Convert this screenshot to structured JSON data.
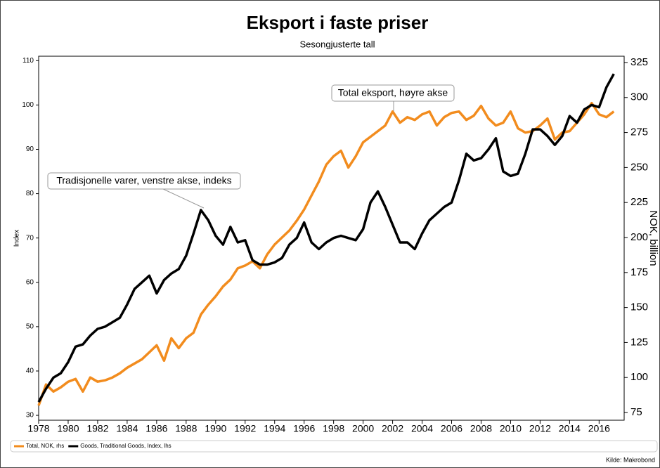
{
  "chart_data": {
    "type": "line",
    "title": "Eksport i faste priser",
    "subtitle": "Sesongjusterte tall",
    "y_label": "Index",
    "y2_label": "NOK, billion",
    "source": "Kilde: Makrobond",
    "annotations": [
      {
        "text": "Total eksport, høyre akse"
      },
      {
        "text": "Tradisjonelle varer, venstre akse, indeks"
      }
    ],
    "x": [
      1978,
      1978.5,
      1979,
      1979.5,
      1980,
      1980.5,
      1981,
      1981.5,
      1982,
      1982.5,
      1983,
      1983.5,
      1984,
      1984.5,
      1985,
      1985.5,
      1986,
      1986.5,
      1987,
      1987.5,
      1988,
      1988.5,
      1989,
      1989.5,
      1990,
      1990.5,
      1991,
      1991.5,
      1992,
      1992.5,
      1993,
      1993.5,
      1994,
      1994.5,
      1995,
      1995.5,
      1996,
      1996.5,
      1997,
      1997.5,
      1998,
      1998.5,
      1999,
      1999.5,
      2000,
      2000.5,
      2001,
      2001.5,
      2002,
      2002.5,
      2003,
      2003.5,
      2004,
      2004.5,
      2005,
      2005.5,
      2006,
      2006.5,
      2007,
      2007.5,
      2008,
      2008.5,
      2009,
      2009.5,
      2010,
      2010.5,
      2011,
      2011.5,
      2012,
      2012.5,
      2013,
      2013.5,
      2014,
      2014.5,
      2015,
      2015.5,
      2016,
      2016.5,
      2017
    ],
    "series": [
      {
        "name": "Total, NOK, rhs",
        "color": "#f28c1e",
        "axis": "y2",
        "values": [
          80,
          95,
          90,
          93,
          97,
          99,
          90,
          100,
          97,
          98,
          100,
          103,
          107,
          110,
          113,
          118,
          123,
          112,
          128,
          121,
          128,
          132,
          145,
          152,
          158,
          165,
          170,
          178,
          180,
          183,
          178,
          188,
          195,
          200,
          205,
          212,
          220,
          230,
          240,
          252,
          258,
          262,
          250,
          258,
          268,
          272,
          276,
          280,
          290,
          282,
          286,
          284,
          288,
          290,
          280,
          286,
          289,
          290,
          284,
          287,
          294,
          285,
          280,
          282,
          290,
          278,
          275,
          276,
          280,
          285,
          270,
          275,
          276,
          282,
          288,
          296,
          288,
          286,
          290
        ]
      },
      {
        "name": "Goods, Traditional Goods, Index, lhs",
        "color": "#000000",
        "values": [
          33,
          36,
          38.5,
          39.5,
          42,
          45.5,
          46,
          48,
          49.5,
          50,
          51,
          52,
          55,
          58.5,
          60,
          61.5,
          57.5,
          60.5,
          62,
          63,
          66,
          71,
          76.3,
          74,
          70.5,
          68.5,
          72.5,
          69,
          69.5,
          65,
          64,
          64,
          64.5,
          65.5,
          68.5,
          70,
          73.5,
          69,
          67.5,
          69,
          70,
          70.5,
          70,
          69.5,
          72,
          78,
          80.5,
          77,
          73,
          69,
          69,
          67.5,
          71,
          74,
          75.5,
          77,
          78,
          83,
          89,
          87.5,
          88,
          90,
          92.5,
          85,
          84,
          84.5,
          89,
          94.5,
          94.5,
          93,
          91,
          93,
          97.5,
          96,
          99,
          100,
          99.5,
          104,
          107
        ]
      }
    ],
    "xlim": [
      1978,
      2017.7
    ],
    "xticks": [
      1978,
      1980,
      1982,
      1984,
      1986,
      1988,
      1990,
      1992,
      1994,
      1996,
      1998,
      2000,
      2002,
      2004,
      2006,
      2008,
      2010,
      2012,
      2014,
      2016
    ],
    "ylim": [
      28.9,
      111
    ],
    "yticks": [
      30,
      40,
      50,
      60,
      70,
      80,
      90,
      100,
      110
    ],
    "y2lim": [
      69.5,
      329.5
    ],
    "y2ticks": [
      75,
      100,
      125,
      150,
      175,
      200,
      225,
      250,
      275,
      300,
      325
    ],
    "legend": "bottom"
  }
}
